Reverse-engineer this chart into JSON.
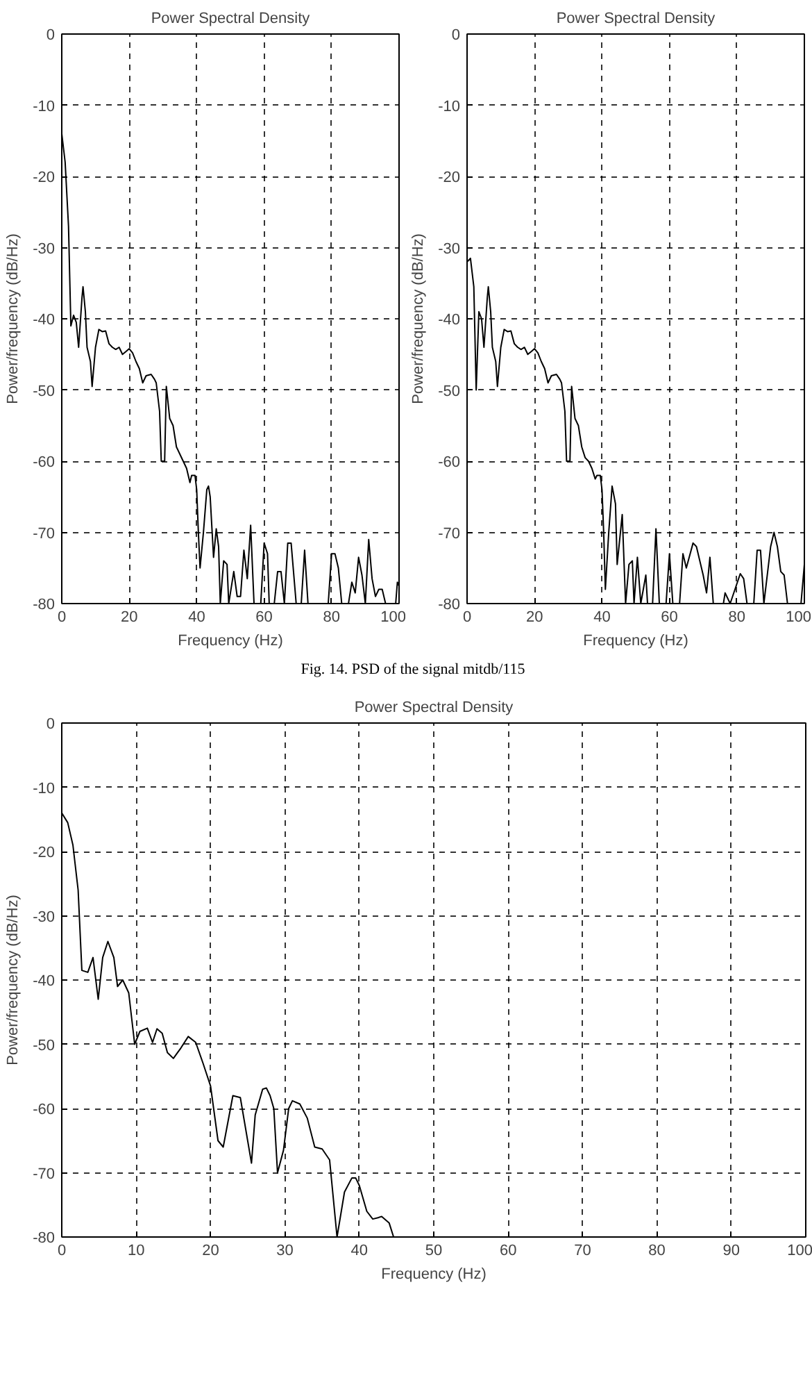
{
  "chart_data": [
    {
      "type": "line",
      "title": "Power Spectral Density",
      "xlabel": "Frequency (Hz)",
      "ylabel": "Power/frequency (dB/Hz)",
      "xlim": [
        0,
        100
      ],
      "ylim": [
        -80,
        0
      ],
      "xticks": [
        0,
        20,
        40,
        60,
        80,
        100
      ],
      "yticks": [
        -80,
        -70,
        -60,
        -50,
        -40,
        -30,
        -20,
        -10,
        0
      ],
      "grid": true,
      "line_style": "solid",
      "annotations": [
        "Fig.  14.  PSD of the signal mitdb/115"
      ],
      "series": [
        {
          "color": "#000000",
          "x": [
            0,
            1,
            2,
            2.7,
            3.5,
            4.3,
            5,
            6,
            6.3,
            7,
            7.5,
            8.5,
            9,
            10,
            11,
            12,
            13,
            14,
            15,
            16,
            17,
            18,
            19,
            20,
            21,
            22,
            23,
            24,
            25,
            26.5,
            27.5,
            28,
            29,
            29.5,
            30.5,
            31,
            32,
            33,
            34,
            35,
            36,
            37,
            38,
            38.5,
            39.5,
            40,
            40.5,
            41,
            42,
            43,
            43.5,
            44,
            45,
            45.8,
            46.5,
            47,
            48,
            49,
            49.5,
            51,
            52,
            53,
            54,
            55,
            56,
            57,
            59,
            60,
            61,
            61.5,
            63,
            64,
            65,
            66,
            67,
            68,
            69.5,
            71,
            72,
            73,
            76,
            77,
            79,
            80,
            81,
            82,
            83,
            85,
            86,
            87,
            88,
            89,
            90,
            91,
            92,
            93,
            94,
            95,
            96,
            98,
            99,
            99.5,
            100
          ],
          "values": [
            -14,
            -18,
            -27,
            -41,
            -39.5,
            -40.5,
            -44,
            -37,
            -35.5,
            -39,
            -44,
            -46,
            -49.5,
            -44,
            -41.5,
            -41.8,
            -41.7,
            -43.5,
            -44,
            -44.3,
            -44,
            -45,
            -44.6,
            -44.2,
            -44.8,
            -46,
            -47,
            -49,
            -48,
            -47.8,
            -48.5,
            -49,
            -53,
            -60,
            -60,
            -49.5,
            -54,
            -55,
            -58,
            -59,
            -60,
            -61,
            -63,
            -62,
            -62,
            -64,
            -70,
            -75,
            -70,
            -64,
            -63.5,
            -65,
            -73.5,
            -69.5,
            -72,
            -80,
            -74,
            -74.5,
            -80,
            -75.5,
            -79,
            -79,
            -72.5,
            -76.5,
            -69,
            -80,
            -80,
            -71.5,
            -73,
            -80,
            -80,
            -75.5,
            -75.5,
            -80,
            -71.5,
            -71.5,
            -80,
            -80,
            -72.5,
            -80,
            -80,
            -80,
            -80,
            -73,
            -73,
            -75,
            -80,
            -80,
            -77,
            -78.5,
            -73.5,
            -76,
            -80,
            -71,
            -76.5,
            -79,
            -78,
            -78,
            -80,
            -80,
            -80,
            -77,
            -77.5
          ]
        }
      ]
    },
    {
      "type": "line",
      "title": "Power Spectral Density",
      "xlabel": "Frequency (Hz)",
      "ylabel": "Power/frequency (dB/Hz)",
      "xlim": [
        0,
        100
      ],
      "ylim": [
        -80,
        0
      ],
      "xticks": [
        0,
        20,
        40,
        60,
        80,
        100
      ],
      "yticks": [
        -80,
        -70,
        -60,
        -50,
        -40,
        -30,
        -20,
        -10,
        0
      ],
      "grid": true,
      "line_style": "solid",
      "series": [
        {
          "color": "#000000",
          "x": [
            0,
            1,
            2,
            2.7,
            3.5,
            4.3,
            5,
            6,
            6.3,
            7,
            7.5,
            8.5,
            9,
            10,
            11,
            12,
            13,
            14,
            15,
            16,
            17,
            18,
            19,
            20,
            21,
            22,
            23,
            24,
            25,
            26.5,
            27.5,
            28,
            29,
            29.5,
            30.5,
            31,
            32,
            33,
            34,
            35,
            36,
            37,
            38,
            38.5,
            39.5,
            40,
            40.5,
            41,
            42,
            43,
            44,
            44.5,
            46,
            47,
            48,
            49,
            49.5,
            50.5,
            51.5,
            53,
            53.5,
            55,
            56,
            57,
            59,
            60,
            61,
            63,
            64,
            65,
            67,
            68,
            70,
            71,
            72,
            73,
            76,
            76.5,
            77,
            78,
            81,
            82,
            83,
            85,
            86,
            87,
            88,
            90,
            91,
            92,
            93,
            94,
            95,
            99,
            100
          ],
          "values": [
            -32,
            -31.5,
            -35.5,
            -50,
            -39,
            -40,
            -44,
            -37,
            -35.5,
            -39,
            -44,
            -46,
            -49.5,
            -44,
            -41.5,
            -41.8,
            -41.7,
            -43.5,
            -44,
            -44.3,
            -44,
            -45,
            -44.6,
            -44.2,
            -44.8,
            -46,
            -47,
            -49,
            -48,
            -47.8,
            -48.5,
            -49,
            -53,
            -60,
            -60,
            -49.5,
            -54,
            -55,
            -58,
            -59.5,
            -60,
            -61,
            -62.5,
            -62,
            -62,
            -64,
            -70,
            -78,
            -70,
            -63.5,
            -66,
            -74.5,
            -67.5,
            -80,
            -74.5,
            -74,
            -80,
            -73.5,
            -80,
            -76,
            -80,
            -80,
            -69.5,
            -80,
            -80,
            -73,
            -80,
            -80,
            -73,
            -75,
            -71.5,
            -72,
            -76,
            -78.5,
            -73.5,
            -80,
            -80,
            -78.5,
            -79,
            -80,
            -75.8,
            -76.5,
            -80,
            -80,
            -72.5,
            -72.5,
            -80,
            -72,
            -70,
            -72,
            -75.5,
            -76,
            -80,
            -80,
            -74.5
          ]
        }
      ]
    },
    {
      "type": "line",
      "title": "Power Spectral Density",
      "xlabel": "Frequency (Hz)",
      "ylabel": "Power/frequency (dB/Hz)",
      "xlim": [
        0,
        100
      ],
      "ylim": [
        -80,
        0
      ],
      "xticks": [
        0,
        10,
        20,
        30,
        40,
        50,
        60,
        70,
        80,
        90,
        100
      ],
      "yticks": [
        -80,
        -70,
        -60,
        -50,
        -40,
        -30,
        -20,
        -10,
        0
      ],
      "grid": true,
      "line_style": "solid",
      "series": [
        {
          "color": "#000000",
          "x": [
            0,
            0.8,
            1.5,
            2.2,
            2.7,
            3.5,
            4.2,
            4.9,
            5.5,
            6.2,
            7,
            7.5,
            8.2,
            9,
            9.8,
            10.5,
            11.5,
            12.2,
            12.8,
            13.5,
            14.2,
            15,
            16,
            17,
            18,
            19,
            20,
            21,
            21.7,
            23,
            24,
            25.5,
            26,
            27,
            27.5,
            28,
            28.5,
            29,
            29.8,
            30.5,
            31,
            32,
            33,
            34,
            35,
            36,
            37,
            38,
            39,
            39.5,
            40,
            41,
            41.8,
            42.5,
            43,
            44,
            44.6
          ],
          "values": [
            -14,
            -15.5,
            -19,
            -26,
            -38.5,
            -38.8,
            -36.5,
            -43,
            -36.5,
            -34,
            -36.5,
            -41,
            -40,
            -42,
            -50,
            -48,
            -47.5,
            -49.7,
            -47.6,
            -48.3,
            -51.3,
            -52.2,
            -50.6,
            -48.8,
            -49.7,
            -53,
            -56.5,
            -65,
            -66,
            -58,
            -58.3,
            -68.5,
            -61,
            -57,
            -56.8,
            -58,
            -60,
            -70,
            -66.5,
            -60,
            -58.8,
            -59.3,
            -61.5,
            -66,
            -66.3,
            -68,
            -80,
            -73,
            -70.8,
            -70.8,
            -72,
            -76,
            -77.2,
            -77,
            -76.8,
            -77.8,
            -80
          ]
        }
      ]
    }
  ]
}
